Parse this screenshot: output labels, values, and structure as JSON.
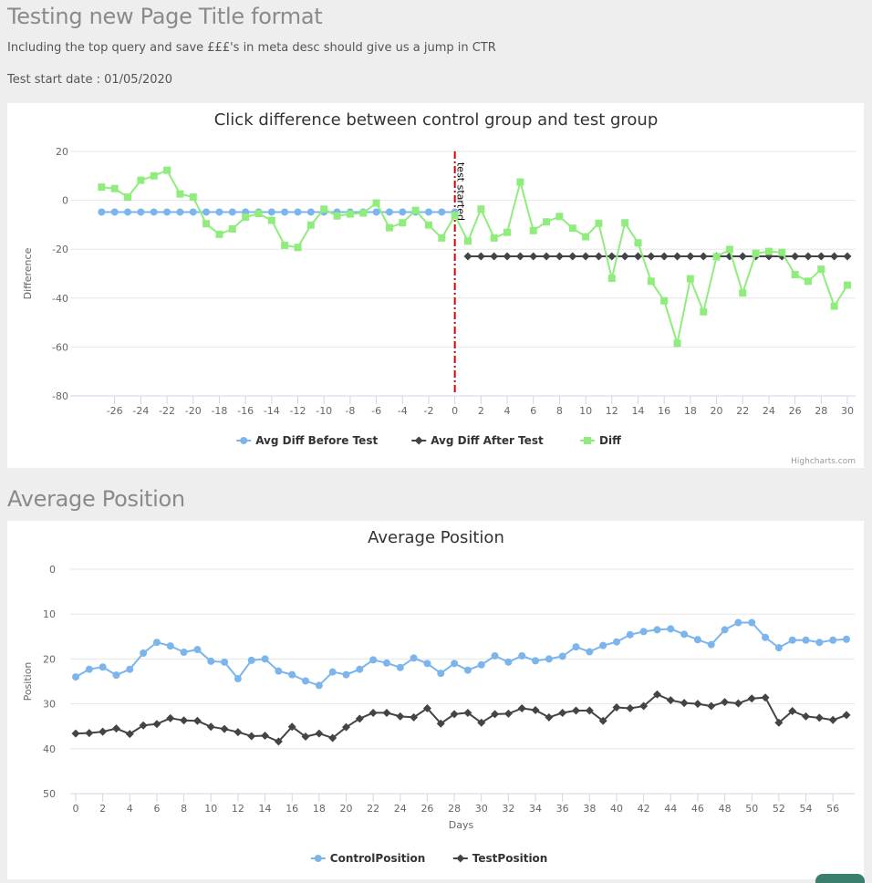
{
  "page": {
    "title": "Testing new Page Title format",
    "subtitle": "Including the top query and save £££'s in meta desc should give us a jump in CTR",
    "test_start": "Test start date : 01/05/2020",
    "section2_title": "Average Position"
  },
  "chart_data": [
    {
      "type": "line",
      "title": "Click difference between control group and test group",
      "xlabel": "",
      "ylabel": "Difference",
      "xlim": [
        -28,
        30
      ],
      "ylim": [
        -80,
        20
      ],
      "x_ticks": [
        -26,
        -24,
        -22,
        -20,
        -18,
        -16,
        -14,
        -12,
        -10,
        -8,
        -6,
        -4,
        -2,
        0,
        2,
        4,
        6,
        8,
        10,
        12,
        14,
        16,
        18,
        20,
        22,
        24,
        26,
        28,
        30
      ],
      "y_ticks": [
        20,
        0,
        -20,
        -40,
        -60,
        -80
      ],
      "grid": true,
      "legend": "bottom-center",
      "plot_line": {
        "x": 0,
        "label": "test started",
        "color": "#dd0000"
      },
      "credit": "Highcharts.com",
      "series": [
        {
          "name": "Avg Diff Before Test",
          "color": "#7cb5ec",
          "marker": "circle",
          "x": [
            -27,
            -26,
            -25,
            -24,
            -23,
            -22,
            -21,
            -20,
            -19,
            -18,
            -17,
            -16,
            -15,
            -14,
            -13,
            -12,
            -11,
            -10,
            -9,
            -8,
            -7,
            -6,
            -5,
            -4,
            -3,
            -2,
            -1,
            0
          ],
          "y": [
            -4.8,
            -4.8,
            -4.8,
            -4.8,
            -4.8,
            -4.8,
            -4.8,
            -4.8,
            -4.8,
            -4.8,
            -4.8,
            -4.8,
            -4.8,
            -4.8,
            -4.8,
            -4.8,
            -4.8,
            -4.8,
            -4.8,
            -4.8,
            -4.8,
            -4.8,
            -4.8,
            -4.8,
            -4.8,
            -4.8,
            -4.8,
            -4.8
          ]
        },
        {
          "name": "Avg Diff After Test",
          "color": "#434348",
          "marker": "diamond",
          "x": [
            1,
            2,
            3,
            4,
            5,
            6,
            7,
            8,
            9,
            10,
            11,
            12,
            13,
            14,
            15,
            16,
            17,
            18,
            19,
            20,
            21,
            22,
            23,
            24,
            25,
            26,
            27,
            28,
            29,
            30
          ],
          "y": [
            -22.9,
            -22.9,
            -22.9,
            -22.9,
            -22.9,
            -22.9,
            -22.9,
            -22.9,
            -22.9,
            -22.9,
            -22.9,
            -22.9,
            -22.9,
            -22.9,
            -22.9,
            -22.9,
            -22.9,
            -22.9,
            -22.9,
            -22.9,
            -22.9,
            -22.9,
            -22.9,
            -22.9,
            -22.9,
            -22.9,
            -22.9,
            -22.9,
            -22.9,
            -22.9
          ]
        },
        {
          "name": "Diff",
          "color": "#90ed7d",
          "marker": "square",
          "x": [
            -27,
            -26,
            -25,
            -24,
            -23,
            -22,
            -21,
            -20,
            -19,
            -18,
            -17,
            -16,
            -15,
            -14,
            -13,
            -12,
            -11,
            -10,
            -9,
            -8,
            -7,
            -6,
            -5,
            -4,
            -3,
            -2,
            -1,
            0,
            1,
            2,
            3,
            4,
            5,
            6,
            7,
            8,
            9,
            10,
            11,
            12,
            13,
            14,
            15,
            16,
            17,
            18,
            19,
            20,
            21,
            22,
            23,
            24,
            25,
            26,
            27,
            28,
            29,
            30
          ],
          "y": [
            5.4,
            4.8,
            1.3,
            8.2,
            10,
            12.3,
            2.6,
            1.3,
            -9.6,
            -13.9,
            -11.7,
            -6.9,
            -5.4,
            -8.2,
            -18.4,
            -19.3,
            -10.1,
            -3.6,
            -6.4,
            -5.6,
            -5.2,
            -1.1,
            -11.2,
            -9.2,
            -4.1,
            -10.1,
            -15.4,
            -6.2,
            -16.7,
            -3.6,
            -15.4,
            -13.1,
            7.5,
            -12.4,
            -8.8,
            -6.6,
            -11.4,
            -14.9,
            -9.4,
            -31.9,
            -9.2,
            -17.4,
            -33.1,
            -41.1,
            -58.5,
            -32.1,
            -45.6,
            -23.1,
            -20.1,
            -37.9,
            -21.7,
            -20.9,
            -21.3,
            -30.4,
            -33.1,
            -28.2,
            -43.3,
            -34.7
          ]
        }
      ]
    },
    {
      "type": "line",
      "title": "Average Position",
      "xlabel": "Days",
      "ylabel": "Position",
      "xlim": [
        0,
        57
      ],
      "ylim": [
        0,
        50
      ],
      "y_reversed": true,
      "x_ticks": [
        0,
        2,
        4,
        6,
        8,
        10,
        12,
        14,
        16,
        18,
        20,
        22,
        24,
        26,
        28,
        30,
        32,
        34,
        36,
        38,
        40,
        42,
        44,
        46,
        48,
        50,
        52,
        54,
        56
      ],
      "y_ticks": [
        0,
        10,
        20,
        30,
        40,
        50
      ],
      "grid": true,
      "legend": "bottom-center",
      "series": [
        {
          "name": "ControlPosition",
          "color": "#7cb5ec",
          "marker": "circle",
          "x": [
            0,
            1,
            2,
            3,
            4,
            5,
            6,
            7,
            8,
            9,
            10,
            11,
            12,
            13,
            14,
            15,
            16,
            17,
            18,
            19,
            20,
            21,
            22,
            23,
            24,
            25,
            26,
            27,
            28,
            29,
            30,
            31,
            32,
            33,
            34,
            35,
            36,
            37,
            38,
            39,
            40,
            41,
            42,
            43,
            44,
            45,
            46,
            47,
            48,
            49,
            50,
            51,
            52,
            53,
            54,
            55,
            56,
            57
          ],
          "y": [
            24,
            22.3,
            21.8,
            23.6,
            22.3,
            18.7,
            16.3,
            17.1,
            18.5,
            17.9,
            20.5,
            20.7,
            24.4,
            20.3,
            20,
            22.7,
            23.5,
            24.9,
            25.9,
            22.9,
            23.5,
            22.3,
            20.2,
            20.9,
            21.9,
            19.8,
            21,
            23.2,
            21,
            22.5,
            21.3,
            19.3,
            20.7,
            19.3,
            20.4,
            20,
            19.4,
            17.3,
            18.4,
            17,
            16.2,
            14.6,
            13.9,
            13.5,
            13.3,
            14.5,
            15.7,
            16.8,
            13.5,
            11.9,
            11.9,
            15.2,
            17.5,
            15.8,
            15.8,
            16.3,
            15.8,
            15.6
          ]
        },
        {
          "name": "TestPosition",
          "color": "#434348",
          "marker": "diamond",
          "x": [
            0,
            1,
            2,
            3,
            4,
            5,
            6,
            7,
            8,
            9,
            10,
            11,
            12,
            13,
            14,
            15,
            16,
            17,
            18,
            19,
            20,
            21,
            22,
            23,
            24,
            25,
            26,
            27,
            28,
            29,
            30,
            31,
            32,
            33,
            34,
            35,
            36,
            37,
            38,
            39,
            40,
            41,
            42,
            43,
            44,
            45,
            46,
            47,
            48,
            49,
            50,
            51,
            52,
            53,
            54,
            55,
            56,
            57
          ],
          "y": [
            36.6,
            36.5,
            36.2,
            35.5,
            36.7,
            34.8,
            34.5,
            33.2,
            33.7,
            33.8,
            35.1,
            35.6,
            36.3,
            37.2,
            37.1,
            38.4,
            35.1,
            37.3,
            36.6,
            37.6,
            35.2,
            33.3,
            32,
            32,
            32.8,
            33,
            31,
            34.4,
            32.3,
            32,
            34.2,
            32.3,
            32.2,
            31,
            31.4,
            33,
            32,
            31.5,
            31.5,
            33.8,
            30.8,
            31,
            30.5,
            27.9,
            29.2,
            29.8,
            30,
            30.5,
            29.6,
            29.9,
            28.8,
            28.6,
            34.2,
            31.6,
            32.8,
            33.1,
            33.6,
            32.5
          ]
        }
      ]
    }
  ]
}
